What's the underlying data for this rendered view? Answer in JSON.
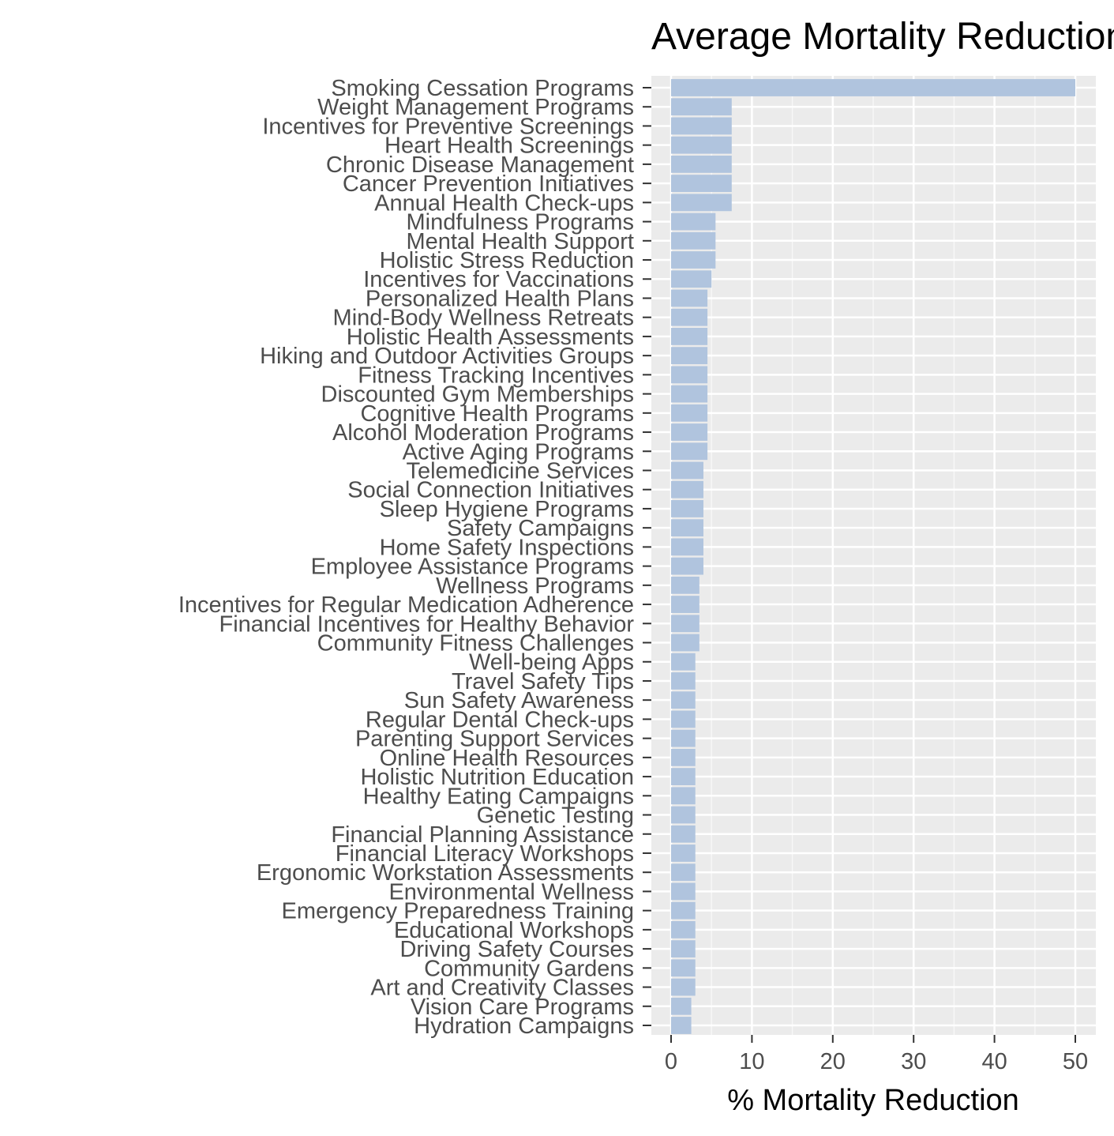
{
  "chart_data": {
    "type": "bar",
    "orientation": "horizontal",
    "title": "Average Mortality Reduction",
    "xlabel": "% Mortality Reduction",
    "ylabel": "",
    "xlim": [
      0,
      52
    ],
    "x_ticks": [
      "0",
      "10",
      "20",
      "30",
      "40",
      "50"
    ],
    "grid": true,
    "legend": "none",
    "categories": [
      "Smoking Cessation Programs",
      "Weight Management Programs",
      "Incentives for Preventive Screenings",
      "Heart Health Screenings",
      "Chronic Disease Management",
      "Cancer Prevention Initiatives",
      "Annual Health Check-ups",
      "Mindfulness Programs",
      "Mental Health Support",
      "Holistic Stress Reduction",
      "Incentives for Vaccinations",
      "Personalized Health Plans",
      "Mind-Body Wellness Retreats",
      "Holistic Health Assessments",
      "Hiking and Outdoor Activities Groups",
      "Fitness Tracking Incentives",
      "Discounted Gym Memberships",
      "Cognitive Health Programs",
      "Alcohol Moderation Programs",
      "Active Aging Programs",
      "Telemedicine Services",
      "Social Connection Initiatives",
      "Sleep Hygiene Programs",
      "Safety Campaigns",
      "Home Safety Inspections",
      "Employee Assistance Programs",
      "Wellness Programs",
      "Incentives for Regular Medication Adherence",
      "Financial Incentives for Healthy Behavior",
      "Community Fitness Challenges",
      "Well-being Apps",
      "Travel Safety Tips",
      "Sun Safety Awareness",
      "Regular Dental Check-ups",
      "Parenting Support Services",
      "Online Health Resources",
      "Holistic Nutrition Education",
      "Healthy Eating Campaigns",
      "Genetic Testing",
      "Financial Planning Assistance",
      "Financial Literacy Workshops",
      "Ergonomic Workstation Assessments",
      "Environmental Wellness",
      "Emergency Preparedness Training",
      "Educational Workshops",
      "Driving Safety Courses",
      "Community Gardens",
      "Art and Creativity Classes",
      "Vision Care Programs",
      "Hydration Campaigns"
    ],
    "values": [
      50,
      7.5,
      7.5,
      7.5,
      7.5,
      7.5,
      7.5,
      5.5,
      5.5,
      5.5,
      5,
      4.5,
      4.5,
      4.5,
      4.5,
      4.5,
      4.5,
      4.5,
      4.5,
      4.5,
      4,
      4,
      4,
      4,
      4,
      4,
      3.5,
      3.5,
      3.5,
      3.5,
      3,
      3,
      3,
      3,
      3,
      3,
      3,
      3,
      3,
      3,
      3,
      3,
      3,
      3,
      3,
      3,
      3,
      3,
      2.5,
      2.5
    ],
    "colors": {
      "bar": "#b0c4de",
      "panel": "#ebebeb",
      "grid_major": "#ffffff",
      "grid_minor": "#f7f7f7",
      "tick": "#333333",
      "label": "#4d4d4d"
    }
  }
}
